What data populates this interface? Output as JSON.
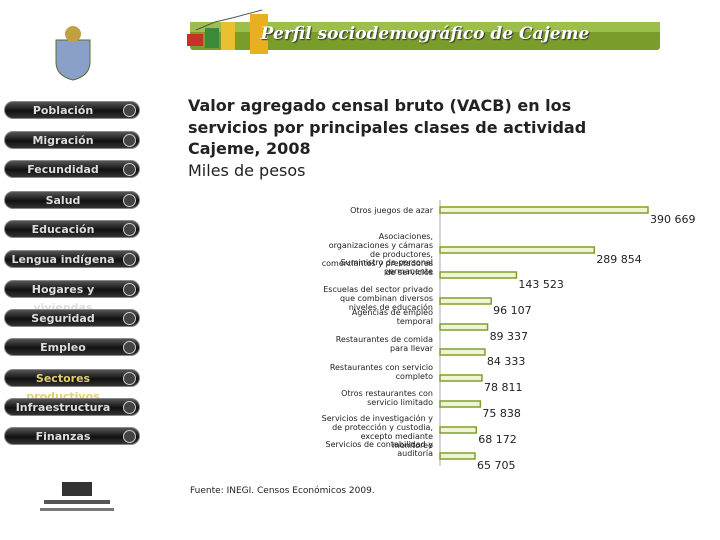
{
  "header": {
    "title": "Perfil sociodemográfico de Cajeme"
  },
  "menu": [
    "Población",
    "Migración",
    "Fecundidad",
    "Salud",
    "Educación",
    "Lengua indígena",
    "Hogares y viviendas",
    "Seguridad",
    "Empleo",
    "Sectores productivos",
    "Infraestructura",
    "Finanzas"
  ],
  "chart_data": {
    "type": "hbar",
    "title": "Valor agregado censal bruto (VACB) en los servicios por principales clases de actividad",
    "subtitle": "Cajeme, 2008",
    "units": "Miles de pesos",
    "categories": [
      "Otros juegos de azar",
      "Asociaciones, organizaciones y cámaras de productores, comerciantes y prestadores de servicios",
      "Suministro de personal permanente",
      "Escuelas del sector privado que combinan diversos niveles de educación",
      "Agencias de empleo temporal",
      "Restaurantes de comida para llevar",
      "Restaurantes con servicio completo",
      "Otros restaurantes con servicio limitado",
      "Servicios de investigación y de protección y custodia, excepto mediante monitoreo",
      "Servicios de contabilidad y auditoría"
    ],
    "values": [
      390669,
      289854,
      143523,
      96107,
      89337,
      84333,
      78811,
      75838,
      68172,
      65705
    ],
    "value_labels": [
      "390 669",
      "289 854",
      "143 523",
      "96 107",
      "89 337",
      "84 333",
      "78 811",
      "75 838",
      "68 172",
      "65 705"
    ],
    "color": "#7f9f2c"
  },
  "footer": {
    "source": "Fuente: INEGI. Censos Económicos 2009."
  }
}
